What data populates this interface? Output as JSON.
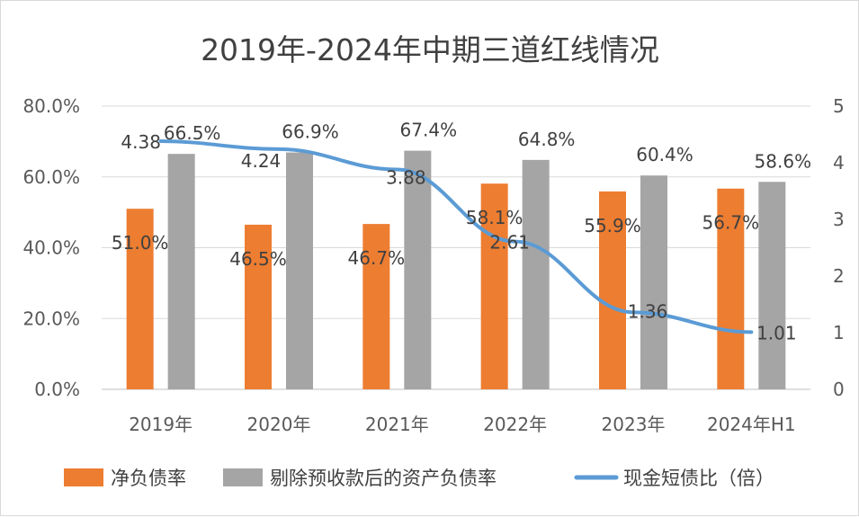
{
  "chart_data": {
    "type": "bar",
    "title": "2019年-2024年中期三道红线情况",
    "categories": [
      "2019年",
      "2020年",
      "2021年",
      "2022年",
      "2023年",
      "2024年H1"
    ],
    "series": [
      {
        "name": "净负债率",
        "type": "bar",
        "axis": "left",
        "color": "#ed7d31",
        "values": [
          51.0,
          46.5,
          46.7,
          58.1,
          55.9,
          56.7
        ],
        "labels": [
          "51.0%",
          "46.5%",
          "46.7%",
          "58.1%",
          "55.9%",
          "56.7%"
        ]
      },
      {
        "name": "剔除预收款后的资产负债率",
        "type": "bar",
        "axis": "left",
        "color": "#a5a5a5",
        "values": [
          66.5,
          66.9,
          67.4,
          64.8,
          60.4,
          58.6
        ],
        "labels": [
          "66.5%",
          "66.9%",
          "67.4%",
          "64.8%",
          "60.4%",
          "58.6%"
        ]
      },
      {
        "name": "现金短债比（倍）",
        "type": "line",
        "axis": "right",
        "color": "#5b9bd5",
        "values": [
          4.38,
          4.24,
          3.88,
          2.61,
          1.36,
          1.01
        ],
        "labels": [
          "4.38",
          "4.24",
          "3.88",
          "2.61",
          "1.36",
          "1.01"
        ]
      }
    ],
    "y_left": {
      "min": 0,
      "max": 80,
      "ticks": [
        0,
        20,
        40,
        60,
        80
      ],
      "tick_labels": [
        "0.0%",
        "20.0%",
        "40.0%",
        "60.0%",
        "80.0%"
      ]
    },
    "y_right": {
      "min": 0,
      "max": 5,
      "ticks": [
        0,
        1,
        2,
        3,
        4,
        5
      ],
      "tick_labels": [
        "0",
        "1",
        "2",
        "3",
        "4",
        "5"
      ]
    },
    "grid": true,
    "legend": "bottom"
  }
}
